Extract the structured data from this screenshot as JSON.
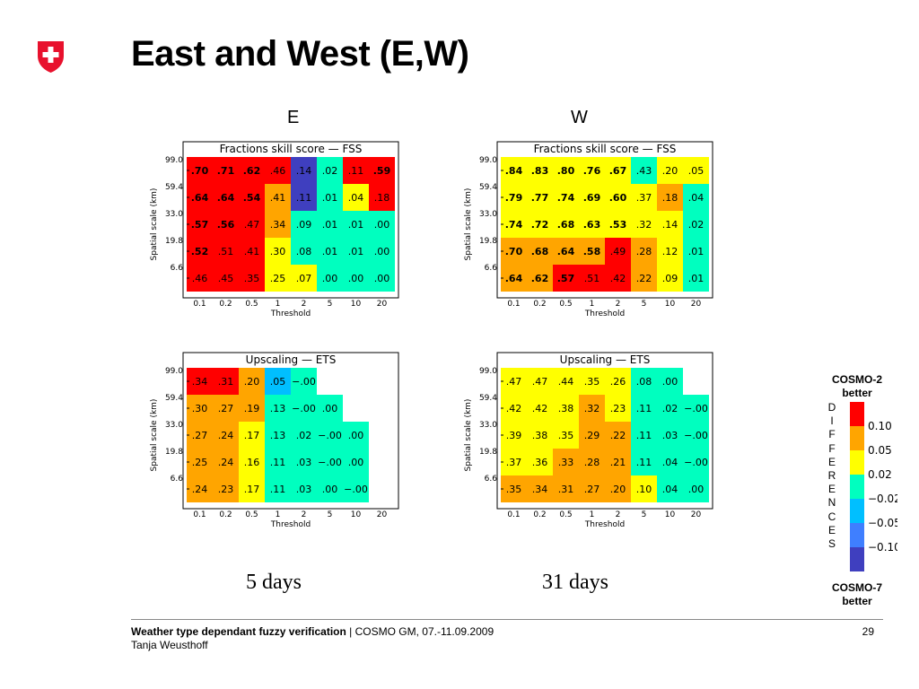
{
  "slide": {
    "title": "East and West (E,W)",
    "col_e": "E",
    "col_w": "W",
    "days_e": "5 days",
    "days_w": "31 days",
    "logo_color": "#e8112d"
  },
  "legend": {
    "top_label": "COSMO-2 better",
    "bottom_label": "COSMO-7 better",
    "letters": [
      "D",
      "I",
      "F",
      "F",
      "E",
      "R",
      "E",
      "N",
      "C",
      "E",
      "S"
    ],
    "colors": [
      "#ff0000",
      "#ffa500",
      "#ffff00",
      "#00ffbf",
      "#00bfff",
      "#3f7fff",
      "#3f3fbf"
    ],
    "tick_labels": [
      "0.10",
      "0.05",
      "0.02",
      "−0.02",
      "−0.05",
      "−0.10"
    ]
  },
  "footer": {
    "title_bold": "Weather type dependant fuzzy verification",
    "title_rest": " | COSMO GM, 07.-11.09.2009",
    "author": "Tanja Weusthoff",
    "page": "29"
  },
  "chart_data": [
    {
      "type": "heatmap",
      "id": "E-FSS",
      "title": "Fractions skill score — FSS",
      "xlabel": "Threshold",
      "ylabel": "Spatial scale (km)",
      "x": [
        "0.1",
        "0.2",
        "0.5",
        "1",
        "2",
        "5",
        "10",
        "20"
      ],
      "y": [
        "99.0",
        "59.4",
        "33.0",
        "19.8",
        "6.6"
      ],
      "values": [
        [
          ".70",
          ".71",
          ".62",
          ".46",
          ".14",
          ".02",
          ".11",
          ".59"
        ],
        [
          ".64",
          ".64",
          ".54",
          ".41",
          ".11",
          ".01",
          ".04",
          ".18"
        ],
        [
          ".57",
          ".56",
          ".47",
          ".34",
          ".09",
          ".01",
          ".01",
          ".00"
        ],
        [
          ".52",
          ".51",
          ".41",
          ".30",
          ".08",
          ".01",
          ".01",
          ".00"
        ],
        [
          ".46",
          ".45",
          ".35",
          ".25",
          ".07",
          ".00",
          ".00",
          ".00"
        ]
      ],
      "bold": [
        [
          1,
          1,
          1,
          0,
          0,
          0,
          0,
          1
        ],
        [
          1,
          1,
          1,
          0,
          0,
          0,
          0,
          0
        ],
        [
          1,
          1,
          0,
          0,
          0,
          0,
          0,
          0
        ],
        [
          1,
          0,
          0,
          0,
          0,
          0,
          0,
          0
        ],
        [
          0,
          0,
          0,
          0,
          0,
          0,
          0,
          0
        ]
      ],
      "colors": [
        [
          "r",
          "r",
          "r",
          "r",
          "b",
          "g",
          "r",
          "r"
        ],
        [
          "r",
          "r",
          "r",
          "o",
          "b",
          "g",
          "y",
          "r"
        ],
        [
          "r",
          "r",
          "r",
          "o",
          "g",
          "g",
          "g",
          "g"
        ],
        [
          "r",
          "r",
          "r",
          "y",
          "g",
          "g",
          "g",
          "g"
        ],
        [
          "r",
          "r",
          "r",
          "y",
          "y",
          "g",
          "g",
          "g"
        ]
      ]
    },
    {
      "type": "heatmap",
      "id": "W-FSS",
      "title": "Fractions skill score — FSS",
      "xlabel": "Threshold",
      "ylabel": "Spatial scale (km)",
      "x": [
        "0.1",
        "0.2",
        "0.5",
        "1",
        "2",
        "5",
        "10",
        "20"
      ],
      "y": [
        "99.0",
        "59.4",
        "33.0",
        "19.8",
        "6.6"
      ],
      "values": [
        [
          ".84",
          ".83",
          ".80",
          ".76",
          ".67",
          ".43",
          ".20",
          ".05"
        ],
        [
          ".79",
          ".77",
          ".74",
          ".69",
          ".60",
          ".37",
          ".18",
          ".04"
        ],
        [
          ".74",
          ".72",
          ".68",
          ".63",
          ".53",
          ".32",
          ".14",
          ".02"
        ],
        [
          ".70",
          ".68",
          ".64",
          ".58",
          ".49",
          ".28",
          ".12",
          ".01"
        ],
        [
          ".64",
          ".62",
          ".57",
          ".51",
          ".42",
          ".22",
          ".09",
          ".01"
        ]
      ],
      "bold": [
        [
          1,
          1,
          1,
          1,
          1,
          0,
          0,
          0
        ],
        [
          1,
          1,
          1,
          1,
          1,
          0,
          0,
          0
        ],
        [
          1,
          1,
          1,
          1,
          1,
          0,
          0,
          0
        ],
        [
          1,
          1,
          1,
          1,
          0,
          0,
          0,
          0
        ],
        [
          1,
          1,
          1,
          0,
          0,
          0,
          0,
          0
        ]
      ],
      "colors": [
        [
          "y",
          "y",
          "y",
          "y",
          "y",
          "g",
          "y",
          "y"
        ],
        [
          "y",
          "y",
          "y",
          "y",
          "y",
          "y",
          "o",
          "g"
        ],
        [
          "y",
          "y",
          "y",
          "y",
          "y",
          "y",
          "y",
          "g"
        ],
        [
          "o",
          "o",
          "o",
          "o",
          "r",
          "o",
          "y",
          "g"
        ],
        [
          "o",
          "o",
          "r",
          "r",
          "r",
          "o",
          "y",
          "g"
        ]
      ]
    },
    {
      "type": "heatmap",
      "id": "E-ETS",
      "title": "Upscaling — ETS",
      "xlabel": "Threshold",
      "ylabel": "Spatial scale (km)",
      "x": [
        "0.1",
        "0.2",
        "0.5",
        "1",
        "2",
        "5",
        "10",
        "20"
      ],
      "y": [
        "99.0",
        "59.4",
        "33.0",
        "19.8",
        "6.6"
      ],
      "values": [
        [
          ".34",
          ".31",
          ".20",
          ".05",
          "−.00",
          "",
          "",
          ""
        ],
        [
          ".30",
          ".27",
          ".19",
          ".13",
          "−.00",
          ".00",
          "",
          ""
        ],
        [
          ".27",
          ".24",
          ".17",
          ".13",
          ".02",
          "−.00",
          ".00",
          ""
        ],
        [
          ".25",
          ".24",
          ".16",
          ".11",
          ".03",
          "−.00",
          ".00",
          ""
        ],
        [
          ".24",
          ".23",
          ".17",
          ".11",
          ".03",
          ".00",
          "−.00",
          ""
        ]
      ],
      "colors": [
        [
          "r",
          "r",
          "o",
          "c",
          "g",
          "w",
          "w",
          "w"
        ],
        [
          "o",
          "o",
          "o",
          "g",
          "g",
          "g",
          "w",
          "w"
        ],
        [
          "o",
          "o",
          "y",
          "g",
          "g",
          "g",
          "g",
          "w"
        ],
        [
          "o",
          "o",
          "y",
          "g",
          "g",
          "g",
          "g",
          "w"
        ],
        [
          "o",
          "o",
          "y",
          "g",
          "g",
          "g",
          "g",
          "w"
        ]
      ]
    },
    {
      "type": "heatmap",
      "id": "W-ETS",
      "title": "Upscaling — ETS",
      "xlabel": "Threshold",
      "ylabel": "Spatial scale (km)",
      "x": [
        "0.1",
        "0.2",
        "0.5",
        "1",
        "2",
        "5",
        "10",
        "20"
      ],
      "y": [
        "99.0",
        "59.4",
        "33.0",
        "19.8",
        "6.6"
      ],
      "values": [
        [
          ".47",
          ".47",
          ".44",
          ".35",
          ".26",
          ".08",
          ".00",
          ""
        ],
        [
          ".42",
          ".42",
          ".38",
          ".32",
          ".23",
          ".11",
          ".02",
          "−.00"
        ],
        [
          ".39",
          ".38",
          ".35",
          ".29",
          ".22",
          ".11",
          ".03",
          "−.00"
        ],
        [
          ".37",
          ".36",
          ".33",
          ".28",
          ".21",
          ".11",
          ".04",
          "−.00"
        ],
        [
          ".35",
          ".34",
          ".31",
          ".27",
          ".20",
          ".10",
          ".04",
          ".00"
        ]
      ],
      "colors": [
        [
          "y",
          "y",
          "y",
          "y",
          "y",
          "g",
          "g",
          "w"
        ],
        [
          "y",
          "y",
          "y",
          "o",
          "y",
          "g",
          "g",
          "g"
        ],
        [
          "y",
          "y",
          "y",
          "o",
          "o",
          "g",
          "g",
          "g"
        ],
        [
          "y",
          "y",
          "o",
          "o",
          "o",
          "g",
          "g",
          "g"
        ],
        [
          "o",
          "o",
          "o",
          "o",
          "o",
          "y",
          "g",
          "g"
        ]
      ]
    }
  ],
  "palette": {
    "r": "#ff0000",
    "o": "#ffa500",
    "y": "#ffff00",
    "g": "#00ffbf",
    "c": "#00bfff",
    "b": "#3f3fbf",
    "w": "#ffffff"
  }
}
